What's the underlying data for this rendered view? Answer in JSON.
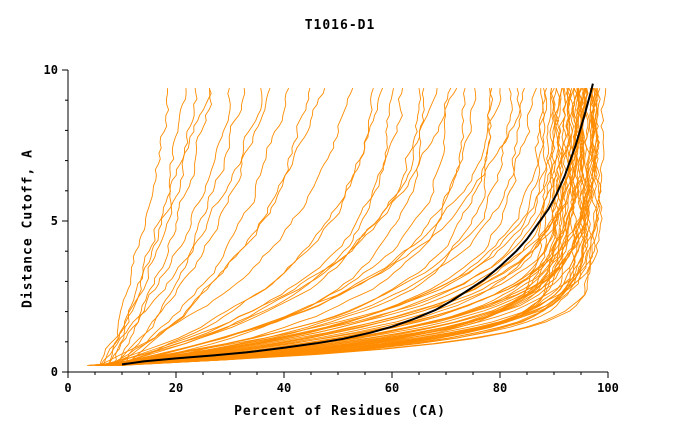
{
  "chart_data": {
    "type": "line",
    "title": "T1016-D1",
    "xlabel": "Percent of Residues (CA)",
    "ylabel": "Distance Cutoff, A",
    "xlim": [
      0,
      100
    ],
    "ylim": [
      0,
      10
    ],
    "xticks": [
      0,
      20,
      40,
      60,
      80,
      100
    ],
    "xtick_minor_step": 5,
    "yticks": [
      0,
      5,
      10
    ],
    "ytick_minor_step": 1,
    "grid": false,
    "legend": "none",
    "colors": {
      "model_lines": "#FF8C00",
      "reference_line": "#000000",
      "axis": "#000000"
    },
    "y_sample_min": 0.22,
    "y_sample_max": 9.55,
    "noise_seed": 7,
    "black_curve_points": [
      [
        10,
        0.25
      ],
      [
        14,
        0.35
      ],
      [
        20,
        0.45
      ],
      [
        27,
        0.55
      ],
      [
        33,
        0.65
      ],
      [
        40,
        0.8
      ],
      [
        46,
        0.95
      ],
      [
        51,
        1.1
      ],
      [
        56,
        1.3
      ],
      [
        60,
        1.5
      ],
      [
        64,
        1.75
      ],
      [
        68,
        2.05
      ],
      [
        71,
        2.35
      ],
      [
        74,
        2.7
      ],
      [
        77,
        3.05
      ],
      [
        80,
        3.5
      ],
      [
        83,
        4.0
      ],
      [
        85,
        4.4
      ],
      [
        87,
        4.9
      ],
      [
        89,
        5.4
      ],
      [
        90.5,
        5.9
      ],
      [
        92,
        6.5
      ],
      [
        93,
        7.0
      ],
      [
        94,
        7.5
      ],
      [
        95,
        8.1
      ],
      [
        95.8,
        8.6
      ],
      [
        96.4,
        9.0
      ],
      [
        97,
        9.4
      ],
      [
        97.2,
        9.55
      ]
    ],
    "orange_curve_params": [
      [
        7,
        19,
        0.08
      ],
      [
        8,
        22,
        0.1
      ],
      [
        6,
        24,
        0.12
      ],
      [
        9,
        27,
        0.09
      ],
      [
        7,
        30,
        0.15
      ],
      [
        10,
        33,
        0.12
      ],
      [
        8,
        36,
        0.18
      ],
      [
        6,
        38,
        0.1
      ],
      [
        9,
        41,
        0.2
      ],
      [
        7,
        26,
        0.06
      ],
      [
        8,
        45,
        0.22
      ],
      [
        10,
        48,
        0.15
      ],
      [
        6,
        52,
        0.25
      ],
      [
        9,
        57,
        0.3
      ],
      [
        7,
        58,
        0.3
      ],
      [
        8,
        62,
        0.35
      ],
      [
        6,
        65,
        0.4
      ],
      [
        9,
        68,
        0.3
      ],
      [
        7,
        71,
        0.45
      ],
      [
        10,
        74,
        0.5
      ],
      [
        8,
        76,
        0.4
      ],
      [
        6,
        78,
        0.55
      ],
      [
        9,
        80,
        0.35
      ],
      [
        7,
        82,
        0.5
      ],
      [
        8,
        84,
        0.6
      ],
      [
        10,
        86,
        0.45
      ],
      [
        6,
        88,
        0.55
      ],
      [
        9,
        85,
        0.3
      ],
      [
        7,
        79,
        0.6
      ],
      [
        8,
        72,
        0.25
      ],
      [
        10,
        66,
        0.5
      ],
      [
        6,
        60,
        0.45
      ],
      [
        5,
        89,
        0.55
      ],
      [
        6,
        90,
        0.6
      ],
      [
        7,
        91,
        0.65
      ],
      [
        8,
        92,
        0.7
      ],
      [
        9,
        93,
        0.75
      ],
      [
        10,
        94,
        0.8
      ],
      [
        4,
        95,
        0.85
      ],
      [
        5,
        96,
        0.9
      ],
      [
        6,
        97,
        0.95
      ],
      [
        7,
        98,
        1.0
      ],
      [
        8,
        99,
        1.05
      ],
      [
        9,
        98,
        1.1
      ],
      [
        10,
        97,
        1.15
      ],
      [
        4,
        96,
        1.2
      ],
      [
        5,
        95,
        1.25
      ],
      [
        6,
        94,
        1.3
      ],
      [
        7,
        93,
        1.35
      ],
      [
        8,
        92,
        1.4
      ],
      [
        9,
        91,
        1.45
      ],
      [
        10,
        90,
        1.5
      ],
      [
        5,
        92,
        0.5
      ],
      [
        6,
        93,
        0.55
      ],
      [
        7,
        94,
        0.6
      ],
      [
        8,
        95,
        0.65
      ],
      [
        9,
        96,
        0.7
      ],
      [
        10,
        97,
        0.75
      ],
      [
        4,
        98,
        0.8
      ],
      [
        5,
        97,
        0.85
      ],
      [
        6,
        96,
        0.9
      ],
      [
        7,
        95,
        0.95
      ],
      [
        8,
        94,
        1.0
      ],
      [
        9,
        93,
        1.05
      ],
      [
        10,
        92,
        1.1
      ],
      [
        4,
        91,
        1.15
      ],
      [
        5,
        90,
        1.2
      ],
      [
        6,
        89,
        1.25
      ],
      [
        7,
        88,
        1.3
      ],
      [
        8,
        96,
        1.35
      ],
      [
        9,
        95,
        1.4
      ],
      [
        10,
        94,
        1.45
      ],
      [
        5,
        97,
        1.55
      ],
      [
        6,
        98,
        1.6
      ],
      [
        7,
        96,
        0.52
      ],
      [
        8,
        95,
        0.58
      ],
      [
        9,
        94,
        0.62
      ],
      [
        10,
        96,
        0.68
      ],
      [
        4,
        97,
        0.72
      ],
      [
        5,
        98,
        0.78
      ],
      [
        6,
        95,
        1.5
      ],
      [
        7,
        97,
        1.22
      ]
    ]
  }
}
